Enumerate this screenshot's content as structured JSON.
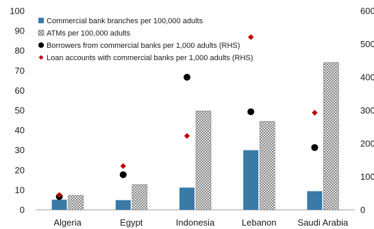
{
  "chart_data": {
    "type": "bar",
    "categories": [
      "Algeria",
      "Egypt",
      "Indonesia",
      "Lebanon",
      "Saudi Arabia"
    ],
    "series": [
      {
        "name": "Commercial bank branches per 100,000 adults",
        "kind": "bar",
        "axis": "left",
        "color": "#3a7aa6",
        "values": [
          5.1,
          4.9,
          11.2,
          30.0,
          9.4
        ]
      },
      {
        "name": "ATMs per 100,000 adults",
        "kind": "bar",
        "axis": "left",
        "pattern": "crosshatch",
        "color": "#7a7a7a",
        "values": [
          7.3,
          12.7,
          49.7,
          44.5,
          74.1
        ]
      },
      {
        "name": "Borrowers from commercial banks per 1,000 adults (RHS)",
        "kind": "marker",
        "marker": "circle",
        "axis": "right",
        "color": "#000000",
        "values": [
          40,
          106,
          400,
          296,
          188
        ]
      },
      {
        "name": "Loan accounts with commercial banks per 1,000 adults (RHS)",
        "kind": "marker",
        "marker": "diamond",
        "axis": "right",
        "color": "#c00000",
        "values": [
          45,
          132,
          223,
          521,
          293
        ]
      }
    ],
    "y_left": {
      "min": 0,
      "max": 100,
      "ticks": [
        "0",
        "10",
        "20",
        "30",
        "40",
        "50",
        "60",
        "70",
        "80",
        "90",
        "100"
      ]
    },
    "y_right": {
      "min": 0,
      "max": 600,
      "ticks": [
        "0",
        "100",
        "200",
        "300",
        "400",
        "500",
        "600"
      ]
    },
    "grid": false,
    "legend": "top-left"
  }
}
